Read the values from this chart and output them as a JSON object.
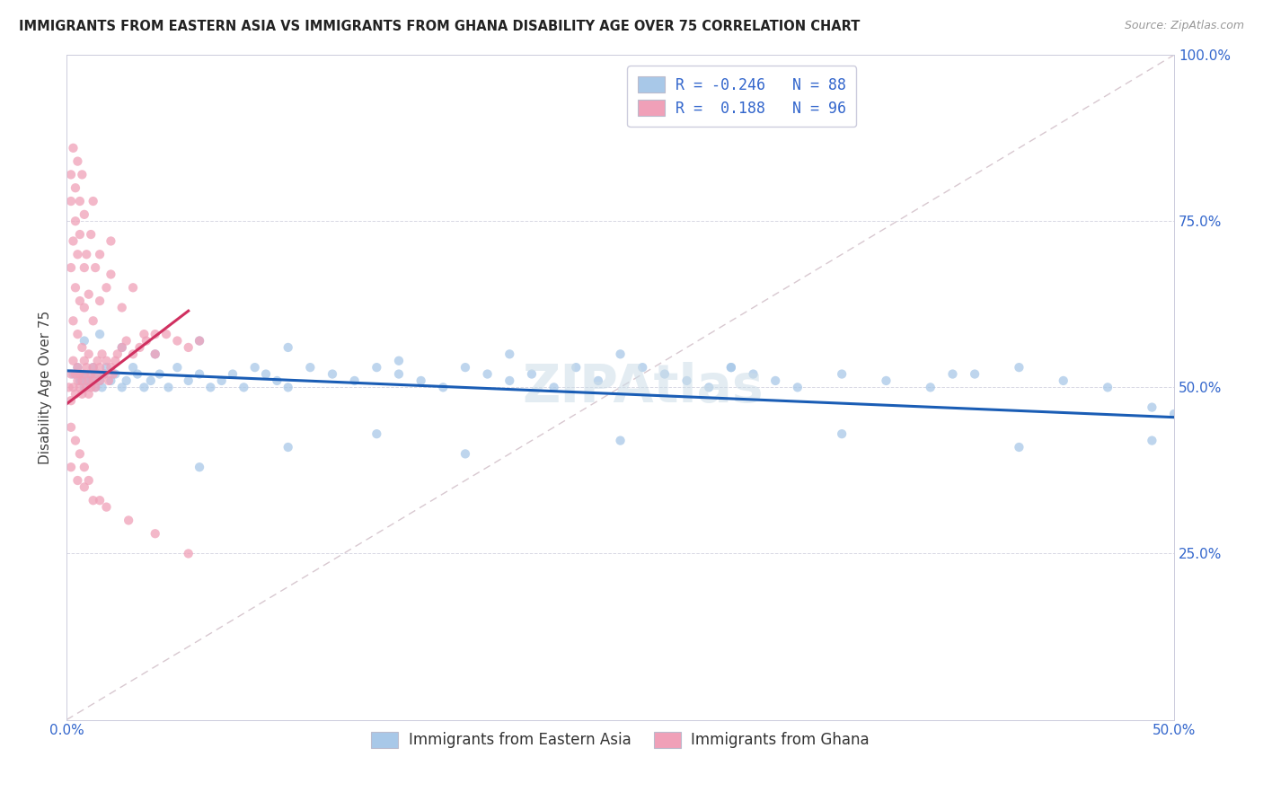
{
  "title": "IMMIGRANTS FROM EASTERN ASIA VS IMMIGRANTS FROM GHANA DISABILITY AGE OVER 75 CORRELATION CHART",
  "source": "Source: ZipAtlas.com",
  "ylabel": "Disability Age Over 75",
  "xlim": [
    0.0,
    0.5
  ],
  "ylim": [
    0.0,
    1.0
  ],
  "blue_color": "#a8c8e8",
  "pink_color": "#f0a0b8",
  "blue_line_color": "#1a5db5",
  "pink_line_color": "#d03060",
  "dashed_line_color": "#d8c8d0",
  "watermark": "ZIPAtlas",
  "blue_line_x": [
    0.0,
    0.5
  ],
  "blue_line_y": [
    0.525,
    0.455
  ],
  "pink_line_x": [
    0.0,
    0.055
  ],
  "pink_line_y": [
    0.475,
    0.615
  ],
  "blue_x": [
    0.003,
    0.005,
    0.006,
    0.007,
    0.008,
    0.009,
    0.01,
    0.011,
    0.012,
    0.013,
    0.014,
    0.015,
    0.016,
    0.017,
    0.018,
    0.02,
    0.022,
    0.025,
    0.027,
    0.03,
    0.032,
    0.035,
    0.038,
    0.042,
    0.046,
    0.05,
    0.055,
    0.06,
    0.065,
    0.07,
    0.075,
    0.08,
    0.085,
    0.09,
    0.095,
    0.1,
    0.11,
    0.12,
    0.13,
    0.14,
    0.15,
    0.16,
    0.17,
    0.18,
    0.19,
    0.2,
    0.21,
    0.22,
    0.23,
    0.24,
    0.25,
    0.26,
    0.27,
    0.28,
    0.29,
    0.3,
    0.31,
    0.32,
    0.33,
    0.35,
    0.37,
    0.39,
    0.41,
    0.43,
    0.45,
    0.47,
    0.49,
    0.5,
    0.008,
    0.015,
    0.025,
    0.04,
    0.06,
    0.1,
    0.15,
    0.2,
    0.3,
    0.4,
    0.06,
    0.1,
    0.14,
    0.18,
    0.25,
    0.35,
    0.43,
    0.49
  ],
  "blue_y": [
    0.52,
    0.53,
    0.51,
    0.52,
    0.5,
    0.51,
    0.52,
    0.51,
    0.53,
    0.5,
    0.52,
    0.51,
    0.5,
    0.52,
    0.53,
    0.51,
    0.52,
    0.5,
    0.51,
    0.53,
    0.52,
    0.5,
    0.51,
    0.52,
    0.5,
    0.53,
    0.51,
    0.52,
    0.5,
    0.51,
    0.52,
    0.5,
    0.53,
    0.52,
    0.51,
    0.5,
    0.53,
    0.52,
    0.51,
    0.53,
    0.52,
    0.51,
    0.5,
    0.53,
    0.52,
    0.51,
    0.52,
    0.5,
    0.53,
    0.51,
    0.55,
    0.53,
    0.52,
    0.51,
    0.5,
    0.53,
    0.52,
    0.51,
    0.5,
    0.52,
    0.51,
    0.5,
    0.52,
    0.53,
    0.51,
    0.5,
    0.47,
    0.46,
    0.57,
    0.58,
    0.56,
    0.55,
    0.57,
    0.56,
    0.54,
    0.55,
    0.53,
    0.52,
    0.38,
    0.41,
    0.43,
    0.4,
    0.42,
    0.43,
    0.41,
    0.42
  ],
  "pink_x": [
    0.001,
    0.002,
    0.002,
    0.003,
    0.003,
    0.004,
    0.004,
    0.005,
    0.005,
    0.006,
    0.006,
    0.007,
    0.007,
    0.008,
    0.008,
    0.009,
    0.009,
    0.01,
    0.01,
    0.011,
    0.011,
    0.012,
    0.012,
    0.013,
    0.013,
    0.014,
    0.015,
    0.015,
    0.016,
    0.017,
    0.018,
    0.019,
    0.02,
    0.021,
    0.022,
    0.023,
    0.025,
    0.027,
    0.03,
    0.033,
    0.036,
    0.04,
    0.045,
    0.05,
    0.055,
    0.06,
    0.003,
    0.005,
    0.007,
    0.01,
    0.002,
    0.004,
    0.006,
    0.008,
    0.01,
    0.012,
    0.015,
    0.003,
    0.005,
    0.008,
    0.002,
    0.004,
    0.006,
    0.009,
    0.013,
    0.018,
    0.025,
    0.035,
    0.002,
    0.004,
    0.006,
    0.008,
    0.011,
    0.015,
    0.02,
    0.003,
    0.005,
    0.007,
    0.012,
    0.02,
    0.03,
    0.04,
    0.002,
    0.005,
    0.008,
    0.012,
    0.018,
    0.028,
    0.04,
    0.055,
    0.002,
    0.004,
    0.006,
    0.008,
    0.01,
    0.015
  ],
  "pink_y": [
    0.5,
    0.52,
    0.48,
    0.5,
    0.54,
    0.52,
    0.49,
    0.51,
    0.53,
    0.5,
    0.52,
    0.51,
    0.49,
    0.52,
    0.54,
    0.5,
    0.53,
    0.51,
    0.49,
    0.52,
    0.5,
    0.53,
    0.51,
    0.52,
    0.5,
    0.54,
    0.53,
    0.51,
    0.55,
    0.52,
    0.54,
    0.51,
    0.53,
    0.52,
    0.54,
    0.55,
    0.56,
    0.57,
    0.55,
    0.56,
    0.57,
    0.55,
    0.58,
    0.57,
    0.56,
    0.57,
    0.6,
    0.58,
    0.56,
    0.55,
    0.68,
    0.65,
    0.63,
    0.62,
    0.64,
    0.6,
    0.63,
    0.72,
    0.7,
    0.68,
    0.78,
    0.75,
    0.73,
    0.7,
    0.68,
    0.65,
    0.62,
    0.58,
    0.82,
    0.8,
    0.78,
    0.76,
    0.73,
    0.7,
    0.67,
    0.86,
    0.84,
    0.82,
    0.78,
    0.72,
    0.65,
    0.58,
    0.38,
    0.36,
    0.35,
    0.33,
    0.32,
    0.3,
    0.28,
    0.25,
    0.44,
    0.42,
    0.4,
    0.38,
    0.36,
    0.33
  ]
}
